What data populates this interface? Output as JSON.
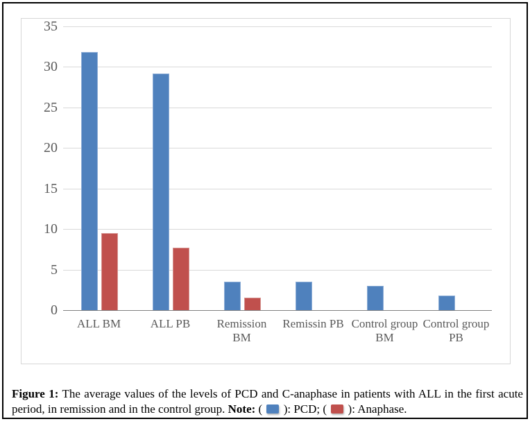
{
  "chart_data": {
    "type": "bar",
    "title": "",
    "xlabel": "",
    "ylabel": "",
    "categories": [
      "ALL BM",
      "ALL PB",
      "Remission BM",
      "Remissin PB",
      "Control group BM",
      "Control group PB"
    ],
    "category_label_lines": [
      [
        "ALL BM"
      ],
      [
        "ALL PB"
      ],
      [
        "Remission",
        "BM"
      ],
      [
        "Remissin PB"
      ],
      [
        "Control group",
        "BM"
      ],
      [
        "Control group",
        "PB"
      ]
    ],
    "series": [
      {
        "name": "PCD",
        "color": "#4F81BD",
        "border_color": "#8DADD6",
        "values": [
          31.8,
          29.2,
          3.5,
          3.5,
          3.0,
          1.8
        ]
      },
      {
        "name": "Anaphase",
        "color": "#C0504D",
        "border_color": "#D59390",
        "values": [
          9.5,
          7.7,
          1.5,
          0,
          0,
          0
        ]
      }
    ],
    "ylim": [
      0,
      35
    ],
    "yticks": [
      0,
      5,
      10,
      15,
      20,
      25,
      30,
      35
    ],
    "grid": true,
    "gridline_color": "#D9D9D9",
    "axis_line_color": "#808080",
    "tick_label_color": "#595959",
    "legend_position": "caption-note"
  },
  "caption": {
    "figure_label": "Figure 1:",
    "body": "The average values of the levels of PCD and C-anaphase in patients with ALL in the first acute",
    "line2": "period, in remission and in the control group.",
    "note_label": "Note:",
    "open_paren": "( ",
    "close_paren_pcd": " ): PCD; ( ",
    "close_paren_anaphase": " ): Anaphase.",
    "legend": [
      {
        "label": "PCD",
        "color": "#4F81BD"
      },
      {
        "label": "Anaphase",
        "color": "#C0504D"
      }
    ]
  }
}
